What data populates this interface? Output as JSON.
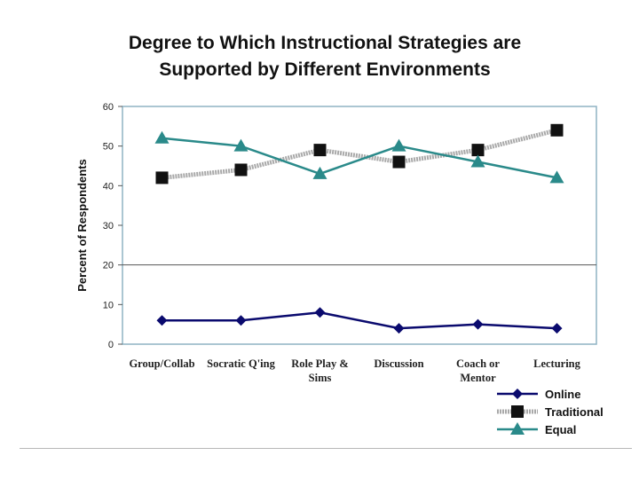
{
  "chart_data": {
    "type": "line",
    "title_lines": [
      "Degree to Which Instructional Strategies are",
      "Supported by Different Environments"
    ],
    "xlabel": "",
    "ylabel": "Percent of Respondents",
    "ylim": [
      0,
      60
    ],
    "yticks": [
      0,
      10,
      20,
      30,
      40,
      50,
      60
    ],
    "grid": "single gridline at 20",
    "categories": [
      [
        "Group/Collab"
      ],
      [
        "Socratic Q'ing"
      ],
      [
        "Role Play &",
        "Sims"
      ],
      [
        "Discussion"
      ],
      [
        "Coach or",
        "Mentor"
      ],
      [
        "Lecturing"
      ]
    ],
    "series": [
      {
        "name": "Online",
        "color": "#0a0a6e",
        "marker": "diamond",
        "values": [
          6,
          6,
          8,
          4,
          5,
          4
        ]
      },
      {
        "name": "Traditional",
        "color": "#a9a9a9",
        "marker": "square",
        "values": [
          42,
          44,
          49,
          46,
          49,
          54
        ]
      },
      {
        "name": "Equal",
        "color": "#2a8a8a",
        "marker": "triangle",
        "values": [
          52,
          50,
          43,
          50,
          46,
          42
        ]
      }
    ],
    "legend": "bottom-right"
  }
}
